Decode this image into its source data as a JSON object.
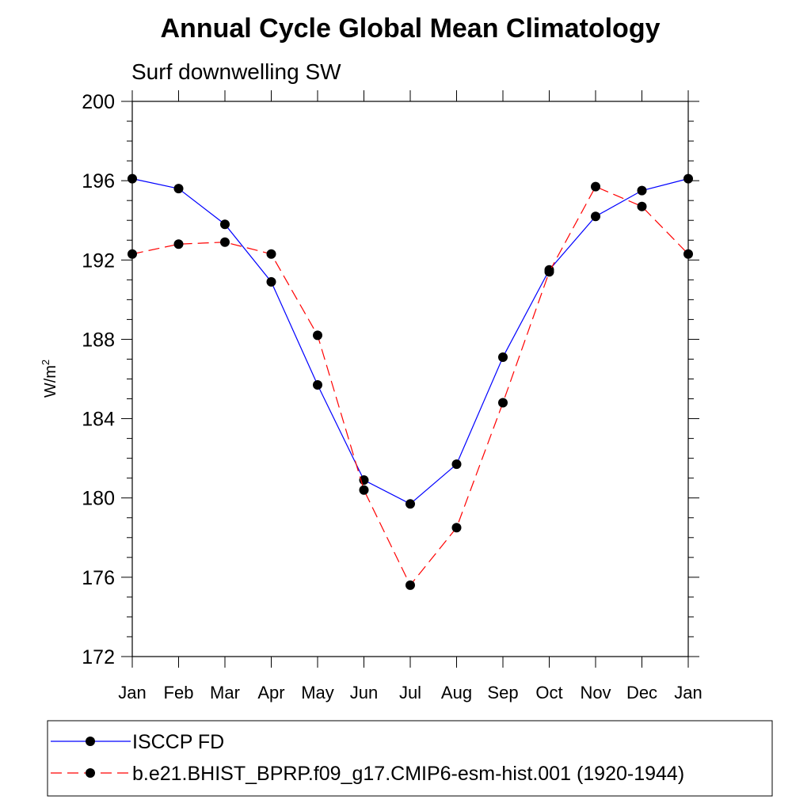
{
  "chart_data": {
    "type": "line",
    "title": "Annual Cycle Global Mean Climatology",
    "subtitle": "Surf downwelling SW",
    "ylabel_base": "W/m",
    "ylabel_sup": "2",
    "xlabel": "",
    "categories": [
      "Jan",
      "Feb",
      "Mar",
      "Apr",
      "May",
      "Jun",
      "Jul",
      "Aug",
      "Sep",
      "Oct",
      "Nov",
      "Dec",
      "Jan"
    ],
    "ylim": [
      172,
      200
    ],
    "yticks": [
      172,
      176,
      180,
      184,
      188,
      192,
      196,
      200
    ],
    "grid": false,
    "legend_position": "bottom",
    "series": [
      {
        "name": "ISCCP FD",
        "color": "#0000ff",
        "dash": "solid",
        "values": [
          196.1,
          195.6,
          193.8,
          190.9,
          185.7,
          180.9,
          179.7,
          181.7,
          187.1,
          191.5,
          194.2,
          195.5,
          196.1
        ]
      },
      {
        "name": "b.e21.BHIST_BPRP.f09_g17.CMIP6-esm-hist.001 (1920-1944)",
        "color": "#ff0000",
        "dash": "dashed",
        "values": [
          192.3,
          192.8,
          192.9,
          192.3,
          188.2,
          180.4,
          175.6,
          178.5,
          184.8,
          191.4,
          195.7,
          194.7,
          192.3
        ]
      }
    ]
  }
}
